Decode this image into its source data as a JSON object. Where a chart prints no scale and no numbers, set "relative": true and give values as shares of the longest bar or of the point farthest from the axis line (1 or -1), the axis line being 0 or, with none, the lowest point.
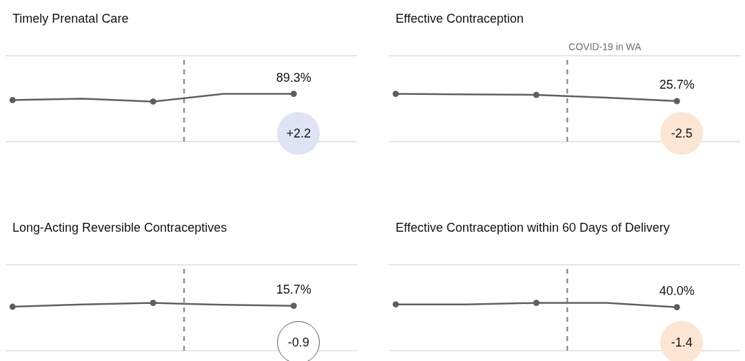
{
  "chart_data": [
    {
      "type": "line",
      "title": "Timely Prenatal Care",
      "categories": [
        null,
        null,
        null,
        null,
        null
      ],
      "relative": true,
      "marker": "circle",
      "series": [
        {
          "color": "#5a6062",
          "values": [
            0.87,
            0.9,
            0.84,
            1,
            1
          ]
        }
      ],
      "annotations": [
        "89.3%",
        "+2.2"
      ]
    },
    {
      "type": "line",
      "title": "Effective Contraception",
      "categories": [
        null,
        null,
        null,
        null,
        null
      ],
      "relative": true,
      "marker": "circle",
      "series": [
        {
          "color": "#5a6062",
          "values": [
            1,
            0.99,
            0.98,
            0.92,
            0.85
          ]
        }
      ],
      "annotations": [
        "COVID-19 in WA",
        "25.7%",
        "-2.5"
      ]
    },
    {
      "type": "line",
      "title": "Long-Acting Reversible Contraceptives",
      "categories": [
        null,
        null,
        null,
        null,
        null
      ],
      "relative": true,
      "marker": "circle",
      "series": [
        {
          "color": "#5a6062",
          "values": [
            0.92,
            0.97,
            1,
            0.96,
            0.94
          ]
        }
      ],
      "annotations": [
        "15.7%",
        "-0.9"
      ]
    },
    {
      "type": "line",
      "title": "Effective Contraception within 60 Days of Delivery",
      "categories": [
        null,
        null,
        null,
        null,
        null
      ],
      "relative": true,
      "marker": "circle",
      "series": [
        {
          "color": "#5a6062",
          "values": [
            0.97,
            0.97,
            1,
            1,
            0.91
          ]
        }
      ],
      "annotations": [
        "40.0%",
        "-1.4"
      ]
    }
  ]
}
